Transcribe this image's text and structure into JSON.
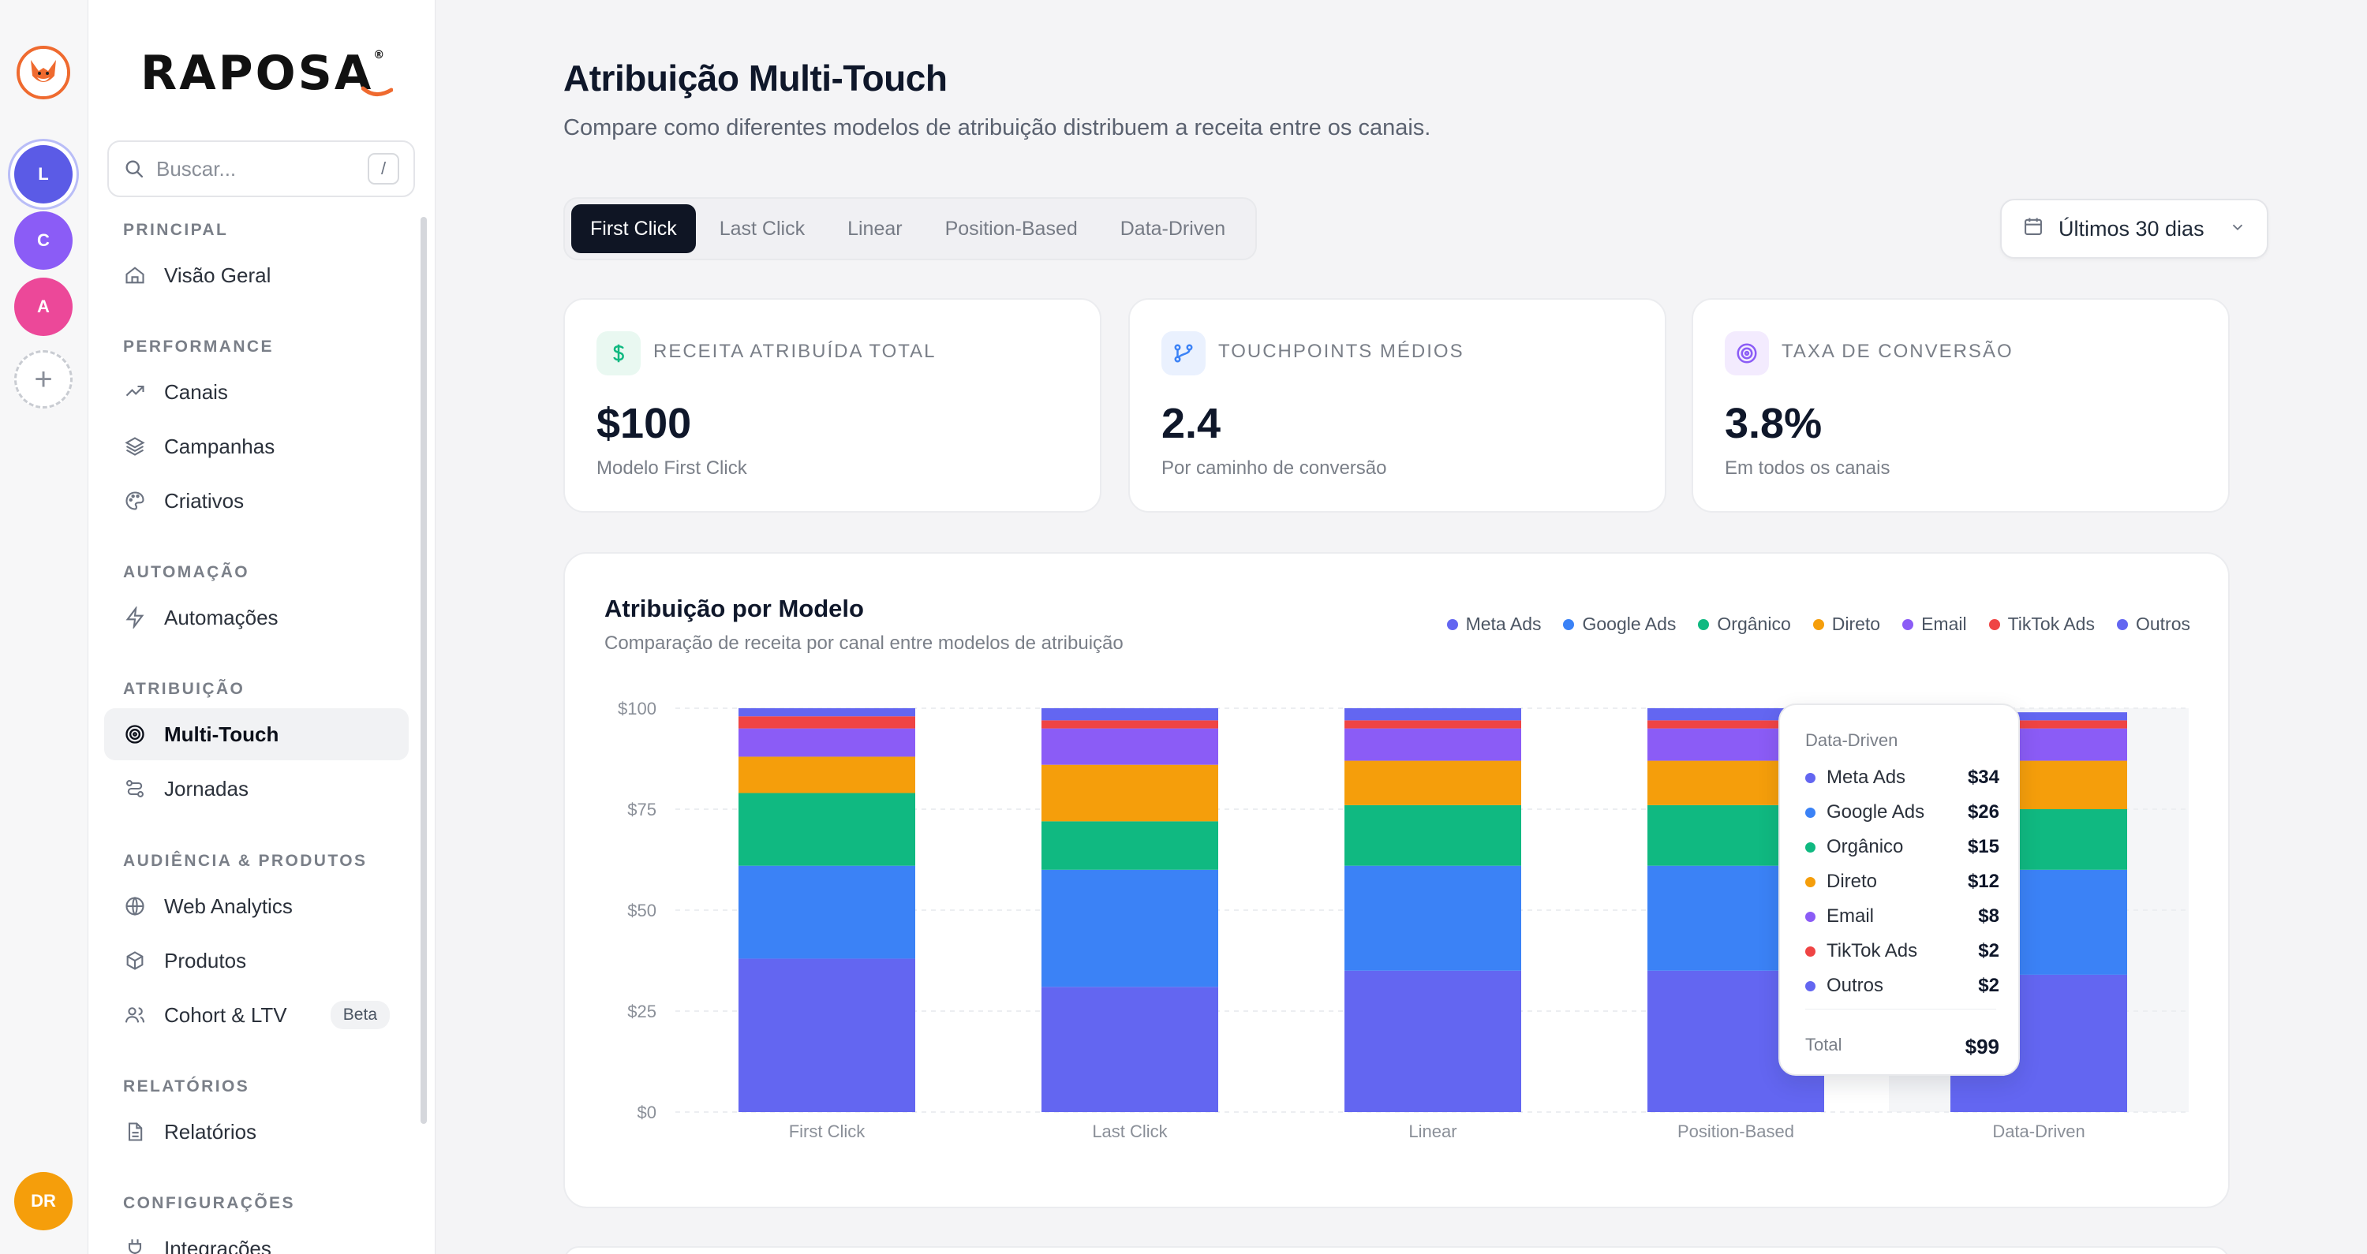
{
  "workspaces": [
    {
      "letter": "L",
      "color": "#5b5be6"
    },
    {
      "letter": "C",
      "color": "#8b5cf6"
    },
    {
      "letter": "A",
      "color": "#ec4899"
    }
  ],
  "user": {
    "initials": "DR"
  },
  "brand": {
    "name": "RAPOSA",
    "mark": "®"
  },
  "search": {
    "placeholder": "Buscar...",
    "shortcut": "/"
  },
  "nav": {
    "principal": "PRINCIPAL",
    "visao_geral": "Visão Geral",
    "performance": "PERFORMANCE",
    "canais": "Canais",
    "campanhas": "Campanhas",
    "criativos": "Criativos",
    "automacao": "AUTOMAÇÃO",
    "automacoes": "Automações",
    "atribuicao": "ATRIBUIÇÃO",
    "multi_touch": "Multi-Touch",
    "jornadas": "Jornadas",
    "audiencia": "AUDIÊNCIA & PRODUTOS",
    "web_analytics": "Web Analytics",
    "produtos": "Produtos",
    "cohort": "Cohort & LTV",
    "beta": "Beta",
    "relatorios_section": "RELATÓRIOS",
    "relatorios": "Relatórios",
    "configuracoes": "CONFIGURAÇÕES",
    "integracoes": "Integrações"
  },
  "page": {
    "title": "Atribuição Multi-Touch",
    "subtitle": "Compare como diferentes modelos de atribuição distribuem a receita entre os canais."
  },
  "tabs": [
    "First Click",
    "Last Click",
    "Linear",
    "Position-Based",
    "Data-Driven"
  ],
  "active_tab": "First Click",
  "date_range": "Últimos 30 dias",
  "kpis": [
    {
      "label": "RECEITA ATRIBUÍDA TOTAL",
      "value": "$100",
      "foot": "Modelo First Click"
    },
    {
      "label": "TOUCHPOINTS MÉDIOS",
      "value": "2.4",
      "foot": "Por caminho de conversão"
    },
    {
      "label": "TAXA DE CONVERSÃO",
      "value": "3.8%",
      "foot": "Em todos os canais"
    }
  ],
  "chart_card": {
    "title": "Atribuição por Modelo",
    "subtitle": "Comparação de receita por canal entre modelos de atribuição"
  },
  "chart_data": {
    "type": "bar",
    "stacked": true,
    "categories": [
      "First Click",
      "Last Click",
      "Linear",
      "Position-Based",
      "Data-Driven"
    ],
    "ylim": [
      0,
      100
    ],
    "yticks": [
      "$0",
      "$25",
      "$50",
      "$75",
      "$100"
    ],
    "legend_position": "top-right",
    "series": [
      {
        "name": "Meta Ads",
        "color": "#6366f1",
        "values": [
          38,
          31,
          35,
          35,
          34
        ]
      },
      {
        "name": "Google Ads",
        "color": "#3b82f6",
        "values": [
          23,
          29,
          26,
          26,
          26
        ]
      },
      {
        "name": "Orgânico",
        "color": "#10b981",
        "values": [
          18,
          12,
          15,
          15,
          15
        ]
      },
      {
        "name": "Direto",
        "color": "#f59e0b",
        "values": [
          9,
          14,
          11,
          11,
          12
        ]
      },
      {
        "name": "Email",
        "color": "#8b5cf6",
        "values": [
          7,
          9,
          8,
          8,
          8
        ]
      },
      {
        "name": "TikTok Ads",
        "color": "#ef4444",
        "values": [
          3,
          2,
          2,
          2,
          2
        ]
      },
      {
        "name": "Outros",
        "color": "#6366f1",
        "values": [
          2,
          3,
          3,
          3,
          2
        ]
      }
    ]
  },
  "tooltip": {
    "title": "Data-Driven",
    "rows": [
      {
        "name": "Meta Ads",
        "value": "$34",
        "color": "#6366f1"
      },
      {
        "name": "Google Ads",
        "value": "$26",
        "color": "#3b82f6"
      },
      {
        "name": "Orgânico",
        "value": "$15",
        "color": "#10b981"
      },
      {
        "name": "Direto",
        "value": "$12",
        "color": "#f59e0b"
      },
      {
        "name": "Email",
        "value": "$8",
        "color": "#8b5cf6"
      },
      {
        "name": "TikTok Ads",
        "value": "$2",
        "color": "#ef4444"
      },
      {
        "name": "Outros",
        "value": "$2",
        "color": "#6366f1"
      }
    ],
    "total_label": "Total",
    "total_value": "$99"
  }
}
